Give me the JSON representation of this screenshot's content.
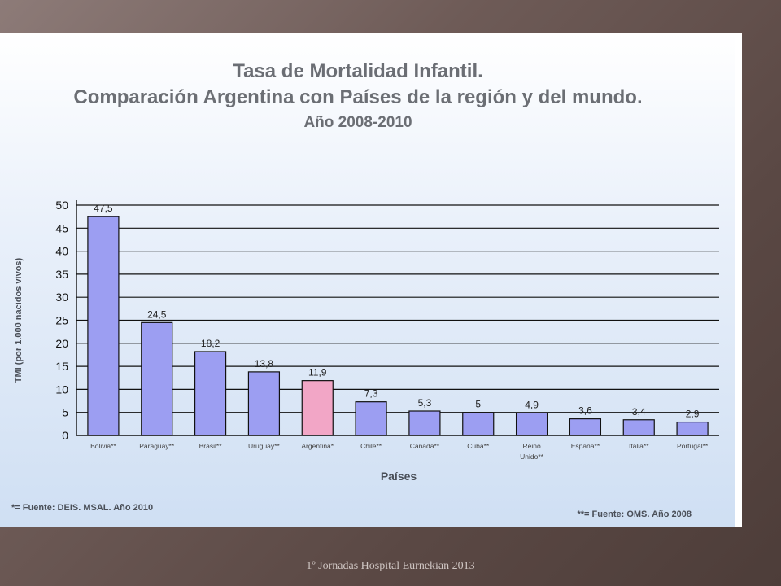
{
  "footer": "1º Jornadas Hospital Eurnekian 2013",
  "chart_data": {
    "type": "bar",
    "title": "Tasa de Mortalidad Infantil.",
    "subtitle": "Comparación Argentina con Países de la región y del mundo.",
    "period": "Año 2008-2010",
    "xlabel": "Países",
    "ylabel": "TMI (por 1.000 nacidos vivos)",
    "ylim": [
      0,
      50
    ],
    "yticks": [
      0,
      5,
      10,
      15,
      20,
      25,
      30,
      35,
      40,
      45,
      50
    ],
    "grid": true,
    "categories": [
      "Bolivia**",
      "Paraguay**",
      "Brasil**",
      "Uruguay**",
      "Argentina*",
      "Chile**",
      "Canadá**",
      "Cuba**",
      "Reino Unido**",
      "España**",
      "Italia**",
      "Portugal**"
    ],
    "category_lines": [
      [
        "Bolivia**"
      ],
      [
        "Paraguay**"
      ],
      [
        "Brasil**"
      ],
      [
        "Uruguay**"
      ],
      [
        "Argentina*"
      ],
      [
        "Chile**"
      ],
      [
        "Canadá**"
      ],
      [
        "Cuba**"
      ],
      [
        "Reino",
        "Unido**"
      ],
      [
        "España**"
      ],
      [
        "Italia**"
      ],
      [
        "Portugal**"
      ]
    ],
    "values": [
      47.5,
      24.5,
      18.2,
      13.8,
      11.9,
      7.3,
      5.3,
      5,
      4.9,
      3.6,
      3.4,
      2.9
    ],
    "value_labels": [
      "47,5",
      "24,5",
      "18,2",
      "13,8",
      "11,9",
      "7,3",
      "5,3",
      "5",
      "4,9",
      "3,6",
      "3,4",
      "2,9"
    ],
    "highlight_category": "Argentina*",
    "colors": {
      "bar": "#9c9ef2",
      "highlight": "#f2a6c6",
      "outline": "#111111"
    },
    "notes": {
      "left": "*= Fuente: DEIS. MSAL. Año 2010",
      "right": "**= Fuente: OMS. Año 2008"
    }
  }
}
